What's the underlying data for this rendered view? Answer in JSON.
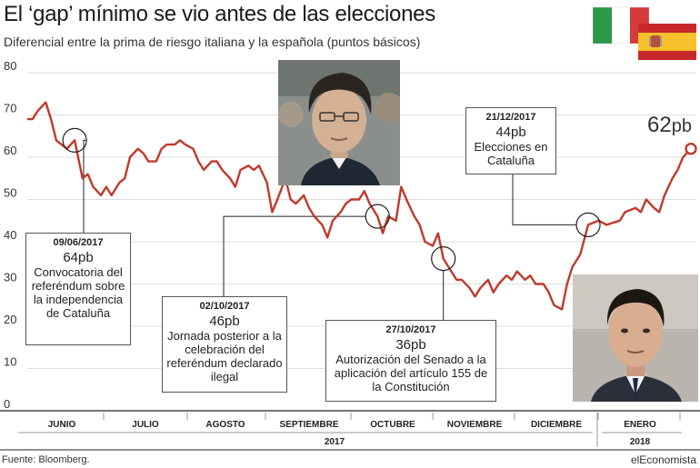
{
  "title": "El ‘gap’ mínimo se vio antes de las elecciones",
  "subtitle": "Diferencial entre la prima de riesgo italiana y la española (puntos básicos)",
  "source": "Fuente: Bloomberg.",
  "brand": "elEconomista",
  "last_value_label": {
    "value": "62",
    "unit": "pb"
  },
  "annotations": [
    {
      "date": "09/06/2017",
      "value": "64pb",
      "text": "Convocatoria del referéndum sobre la independencia de Cataluña"
    },
    {
      "date": "02/10/2017",
      "value": "46pb",
      "text": "Jornada posterior a la celebración del referéndum declarado ilegal"
    },
    {
      "date": "27/10/2017",
      "value": "36pb",
      "text": "Autorización del Senado a la aplicación del artículo 155 de la Constitución"
    },
    {
      "date": "21/12/2017",
      "value": "44pb",
      "text": "Elecciones en Cataluña"
    }
  ],
  "colors": {
    "line": "#c0392b",
    "axis": "#222222",
    "grid": "#dddddd"
  },
  "images": [
    "portrait-photo",
    "portrait-photo"
  ],
  "flags": [
    "italy-flag",
    "spain-flag"
  ],
  "chart_data": {
    "type": "line",
    "title": "El ‘gap’ mínimo se vio antes de las elecciones",
    "subtitle": "Diferencial entre la prima de riesgo italiana y la española (puntos básicos)",
    "xlabel": "",
    "ylabel": "",
    "ylim": [
      0,
      80
    ],
    "yticks": [
      0,
      10,
      20,
      30,
      40,
      50,
      60,
      70,
      80
    ],
    "grid": true,
    "x_month_labels": [
      "JUNIO",
      "JULIO",
      "AGOSTO",
      "SEPTIEMBRE",
      "OCTUBRE",
      "NOVIEMBRE",
      "DICIEMBRE",
      "ENERO"
    ],
    "x_year_labels": [
      "2017",
      "2018"
    ],
    "x_range": [
      "2017-05-22",
      "2018-01-29"
    ],
    "series": [
      {
        "name": "",
        "points": [
          [
            "2017-05-22",
            69
          ],
          [
            "2017-05-24",
            69
          ],
          [
            "2017-05-26",
            71
          ],
          [
            "2017-05-29",
            73
          ],
          [
            "2017-05-31",
            69
          ],
          [
            "2017-06-02",
            64
          ],
          [
            "2017-06-06",
            62
          ],
          [
            "2017-06-09",
            64
          ],
          [
            "2017-06-12",
            55
          ],
          [
            "2017-06-14",
            56
          ],
          [
            "2017-06-16",
            53
          ],
          [
            "2017-06-19",
            51
          ],
          [
            "2017-06-21",
            53
          ],
          [
            "2017-06-23",
            51
          ],
          [
            "2017-06-26",
            54
          ],
          [
            "2017-06-28",
            55
          ],
          [
            "2017-06-30",
            60
          ],
          [
            "2017-07-03",
            62
          ],
          [
            "2017-07-05",
            61
          ],
          [
            "2017-07-07",
            59
          ],
          [
            "2017-07-10",
            59
          ],
          [
            "2017-07-12",
            62
          ],
          [
            "2017-07-14",
            63
          ],
          [
            "2017-07-17",
            63
          ],
          [
            "2017-07-19",
            64
          ],
          [
            "2017-07-21",
            63
          ],
          [
            "2017-07-24",
            62
          ],
          [
            "2017-07-26",
            59
          ],
          [
            "2017-07-28",
            57
          ],
          [
            "2017-07-31",
            59
          ],
          [
            "2017-08-02",
            59
          ],
          [
            "2017-08-04",
            57
          ],
          [
            "2017-08-07",
            55
          ],
          [
            "2017-08-09",
            53
          ],
          [
            "2017-08-11",
            57
          ],
          [
            "2017-08-14",
            58
          ],
          [
            "2017-08-16",
            57
          ],
          [
            "2017-08-18",
            58
          ],
          [
            "2017-08-21",
            54
          ],
          [
            "2017-08-23",
            47
          ],
          [
            "2017-08-25",
            50
          ],
          [
            "2017-08-28",
            55
          ],
          [
            "2017-08-30",
            50
          ],
          [
            "2017-09-01",
            49
          ],
          [
            "2017-09-04",
            51
          ],
          [
            "2017-09-06",
            48
          ],
          [
            "2017-09-08",
            46
          ],
          [
            "2017-09-11",
            44
          ],
          [
            "2017-09-13",
            41
          ],
          [
            "2017-09-15",
            45
          ],
          [
            "2017-09-18",
            47
          ],
          [
            "2017-09-20",
            49
          ],
          [
            "2017-09-22",
            50
          ],
          [
            "2017-09-25",
            50
          ],
          [
            "2017-09-27",
            52
          ],
          [
            "2017-09-29",
            49
          ],
          [
            "2017-10-02",
            46
          ],
          [
            "2017-10-04",
            42
          ],
          [
            "2017-10-06",
            46
          ],
          [
            "2017-10-09",
            45
          ],
          [
            "2017-10-11",
            53
          ],
          [
            "2017-10-13",
            50
          ],
          [
            "2017-10-16",
            46
          ],
          [
            "2017-10-18",
            44
          ],
          [
            "2017-10-20",
            40
          ],
          [
            "2017-10-23",
            39
          ],
          [
            "2017-10-25",
            42
          ],
          [
            "2017-10-27",
            36
          ],
          [
            "2017-10-30",
            33
          ],
          [
            "2017-11-01",
            31
          ],
          [
            "2017-11-03",
            31
          ],
          [
            "2017-11-06",
            29
          ],
          [
            "2017-11-08",
            27
          ],
          [
            "2017-11-10",
            29
          ],
          [
            "2017-11-13",
            31
          ],
          [
            "2017-11-15",
            28
          ],
          [
            "2017-11-17",
            30
          ],
          [
            "2017-11-20",
            32
          ],
          [
            "2017-11-22",
            31
          ],
          [
            "2017-11-24",
            33
          ],
          [
            "2017-11-27",
            31
          ],
          [
            "2017-11-29",
            32
          ],
          [
            "2017-12-01",
            30
          ],
          [
            "2017-12-04",
            30
          ],
          [
            "2017-12-06",
            28
          ],
          [
            "2017-12-08",
            25
          ],
          [
            "2017-12-11",
            24
          ],
          [
            "2017-12-13",
            30
          ],
          [
            "2017-12-15",
            34
          ],
          [
            "2017-12-18",
            37
          ],
          [
            "2017-12-21",
            44
          ],
          [
            "2017-12-25",
            45
          ],
          [
            "2017-12-28",
            44
          ],
          [
            "2018-01-02",
            45
          ],
          [
            "2018-01-04",
            47
          ],
          [
            "2018-01-08",
            48
          ],
          [
            "2018-01-10",
            47
          ],
          [
            "2018-01-12",
            50
          ],
          [
            "2018-01-15",
            48
          ],
          [
            "2018-01-17",
            47
          ],
          [
            "2018-01-19",
            51
          ],
          [
            "2018-01-22",
            55
          ],
          [
            "2018-01-24",
            57
          ],
          [
            "2018-01-26",
            60
          ],
          [
            "2018-01-29",
            62
          ]
        ]
      }
    ],
    "highlighted_points": [
      {
        "date": "2017-06-09",
        "value": 64
      },
      {
        "date": "2017-10-02",
        "value": 46
      },
      {
        "date": "2017-10-27",
        "value": 36
      },
      {
        "date": "2017-12-21",
        "value": 44
      },
      {
        "date": "2018-01-29",
        "value": 62
      }
    ]
  }
}
